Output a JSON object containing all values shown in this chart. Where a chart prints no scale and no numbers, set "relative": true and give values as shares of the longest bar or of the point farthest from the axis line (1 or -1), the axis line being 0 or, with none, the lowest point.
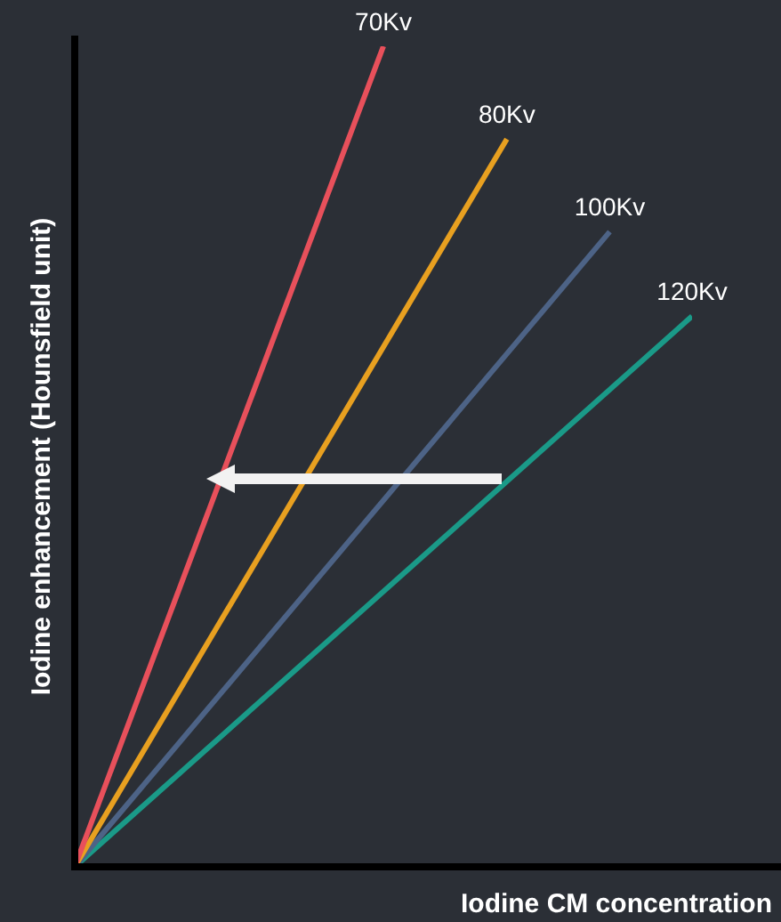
{
  "chart_data": {
    "type": "line",
    "relative": true,
    "xlabel": "Iodine CM concentration",
    "ylabel": "Iodine enhancement (Hounsfield unit)",
    "legend": false,
    "marker": "none",
    "categories": [
      null,
      null,
      null,
      null,
      null,
      null,
      null,
      null,
      null,
      null,
      null,
      null,
      null,
      null,
      null,
      null,
      null,
      null,
      null,
      null,
      null,
      null,
      null,
      null,
      null,
      null,
      null,
      null,
      null,
      null,
      null
    ],
    "series": [
      {
        "name": "70Kv",
        "color": "#e8505b",
        "values": [
          0,
          null,
          null,
          null,
          null,
          null,
          null,
          null,
          null,
          null,
          null,
          null,
          null,
          null,
          null,
          1,
          null,
          null,
          null,
          null,
          null,
          null,
          null,
          null,
          null,
          null,
          null,
          null,
          null,
          null,
          null
        ]
      },
      {
        "name": "80Kv",
        "color": "#e8a020",
        "values": [
          0,
          null,
          null,
          null,
          null,
          null,
          null,
          null,
          null,
          null,
          null,
          null,
          null,
          null,
          null,
          null,
          null,
          null,
          null,
          null,
          null,
          0.887,
          null,
          null,
          null,
          null,
          null,
          null,
          null,
          null,
          null
        ]
      },
      {
        "name": "100Kv",
        "color": "#4d6386",
        "values": [
          0,
          null,
          null,
          null,
          null,
          null,
          null,
          null,
          null,
          null,
          null,
          null,
          null,
          null,
          null,
          null,
          null,
          null,
          null,
          null,
          null,
          null,
          null,
          null,
          null,
          null,
          0.774,
          null,
          null,
          null,
          null
        ]
      },
      {
        "name": "120Kv",
        "color": "#1a9a88",
        "values": [
          0,
          null,
          null,
          null,
          null,
          null,
          null,
          null,
          null,
          null,
          null,
          null,
          null,
          null,
          null,
          null,
          null,
          null,
          null,
          null,
          null,
          null,
          null,
          null,
          null,
          null,
          null,
          null,
          null,
          null,
          0.671
        ]
      }
    ]
  }
}
